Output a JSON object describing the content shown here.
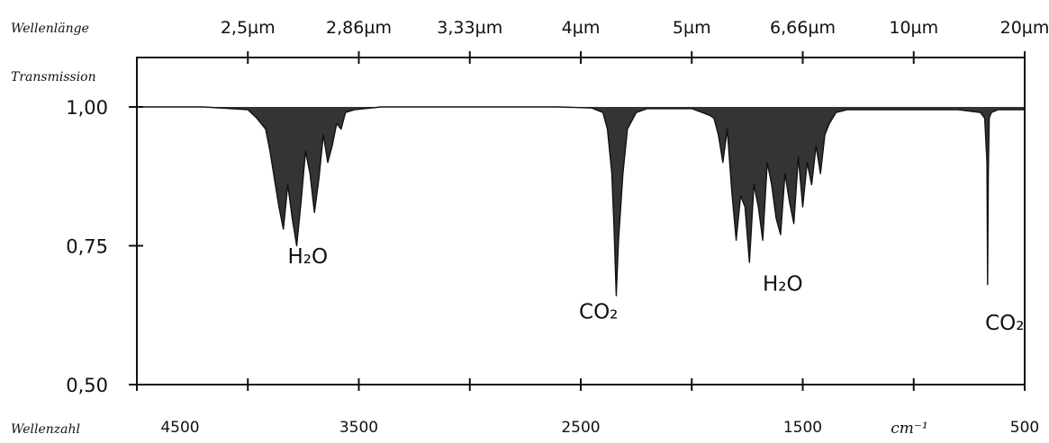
{
  "chart_data": {
    "type": "line",
    "top_axis": {
      "label": "Wellenlänge",
      "ticks": [
        {
          "label": "2,5µm",
          "at_wavenumber": 4000
        },
        {
          "label": "2,86µm",
          "at_wavenumber": 3500
        },
        {
          "label": "3,33µm",
          "at_wavenumber": 3000
        },
        {
          "label": "4µm",
          "at_wavenumber": 2500
        },
        {
          "label": "5µm",
          "at_wavenumber": 2000
        },
        {
          "label": "6,66µm",
          "at_wavenumber": 1500
        },
        {
          "label": "10µm",
          "at_wavenumber": 1000
        },
        {
          "label": "20µm",
          "at_wavenumber": 500
        }
      ]
    },
    "bottom_axis": {
      "label": "Wellenzahl",
      "unit": "cm⁻¹",
      "range": [
        4500,
        500
      ],
      "major_ticks": [
        4500,
        4000,
        3500,
        3000,
        2500,
        2000,
        1500,
        1000,
        500
      ],
      "tick_labels": [
        {
          "value": 4500,
          "label": "4500"
        },
        {
          "value": 3500,
          "label": "3500"
        },
        {
          "value": 2500,
          "label": "2500"
        },
        {
          "value": 1500,
          "label": "1500"
        },
        {
          "value": 500,
          "label": "500"
        }
      ]
    },
    "y_axis": {
      "label": "Transmission",
      "range": [
        0.5,
        1.05
      ],
      "ticks": [
        {
          "value": 1.0,
          "label": "1,00"
        },
        {
          "value": 0.75,
          "label": "0,75"
        },
        {
          "value": 0.5,
          "label": "0,50"
        }
      ]
    },
    "series": [
      {
        "x": [
          4500,
          4200,
          4000,
          3960,
          3920,
          3900,
          3880,
          3860,
          3840,
          3820,
          3800,
          3780,
          3760,
          3740,
          3720,
          3700,
          3680,
          3660,
          3640,
          3620,
          3600,
          3580,
          3560,
          3520,
          3400,
          3000,
          2600,
          2450,
          2400,
          2380,
          2360,
          2350,
          2340,
          2330,
          2310,
          2290,
          2250,
          2200,
          2000,
          1920,
          1900,
          1880,
          1860,
          1840,
          1820,
          1800,
          1780,
          1760,
          1740,
          1720,
          1700,
          1680,
          1660,
          1640,
          1620,
          1600,
          1580,
          1560,
          1540,
          1520,
          1500,
          1480,
          1460,
          1440,
          1420,
          1400,
          1380,
          1350,
          1300,
          1000,
          800,
          700,
          680,
          670,
          667,
          664,
          660,
          650,
          620,
          500
        ],
        "y": [
          1.0,
          1.0,
          0.995,
          0.98,
          0.96,
          0.92,
          0.87,
          0.82,
          0.78,
          0.86,
          0.8,
          0.75,
          0.83,
          0.92,
          0.88,
          0.81,
          0.87,
          0.95,
          0.9,
          0.93,
          0.97,
          0.96,
          0.99,
          0.995,
          1.0,
          1.0,
          1.0,
          0.998,
          0.99,
          0.96,
          0.88,
          0.78,
          0.66,
          0.76,
          0.88,
          0.96,
          0.99,
          0.997,
          0.997,
          0.985,
          0.98,
          0.95,
          0.9,
          0.96,
          0.85,
          0.76,
          0.84,
          0.82,
          0.72,
          0.86,
          0.82,
          0.76,
          0.9,
          0.86,
          0.8,
          0.77,
          0.88,
          0.83,
          0.79,
          0.91,
          0.82,
          0.9,
          0.86,
          0.93,
          0.88,
          0.95,
          0.97,
          0.99,
          0.995,
          0.995,
          0.995,
          0.99,
          0.98,
          0.9,
          0.68,
          0.88,
          0.98,
          0.99,
          0.995,
          0.995
        ]
      }
    ],
    "annotations": [
      {
        "text": "H₂O",
        "x": 3730,
        "y": 0.735
      },
      {
        "text": "CO₂",
        "x": 2420,
        "y": 0.635
      },
      {
        "text": "H₂O",
        "x": 1590,
        "y": 0.685
      },
      {
        "text": "CO₂",
        "x": 590,
        "y": 0.615
      }
    ],
    "grid": false,
    "colors": {
      "line": "#111111",
      "fill": "#111111",
      "background": "#ffffff"
    }
  }
}
